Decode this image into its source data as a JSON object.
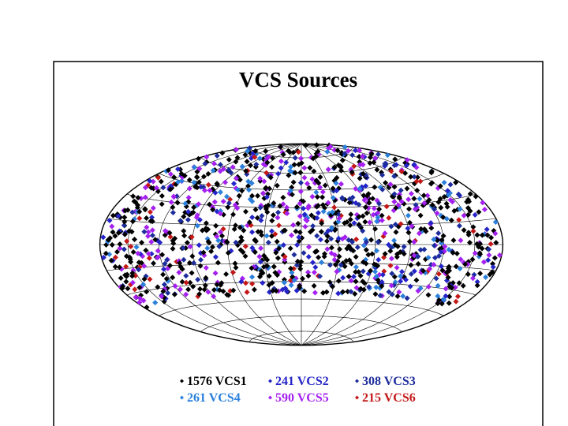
{
  "title": "VCS Sources",
  "legend": [
    {
      "text": "1576 VCS1",
      "color": "#000000"
    },
    {
      "text": "241 VCS2",
      "color": "#2424c8"
    },
    {
      "text": "308 VCS3",
      "color": "#1c2c9c"
    },
    {
      "text": "261 VCS4",
      "color": "#2a80dc"
    },
    {
      "text": "590 VCS5",
      "color": "#a41ff0"
    },
    {
      "text": "215 VCS6",
      "color": "#c41818"
    }
  ]
}
